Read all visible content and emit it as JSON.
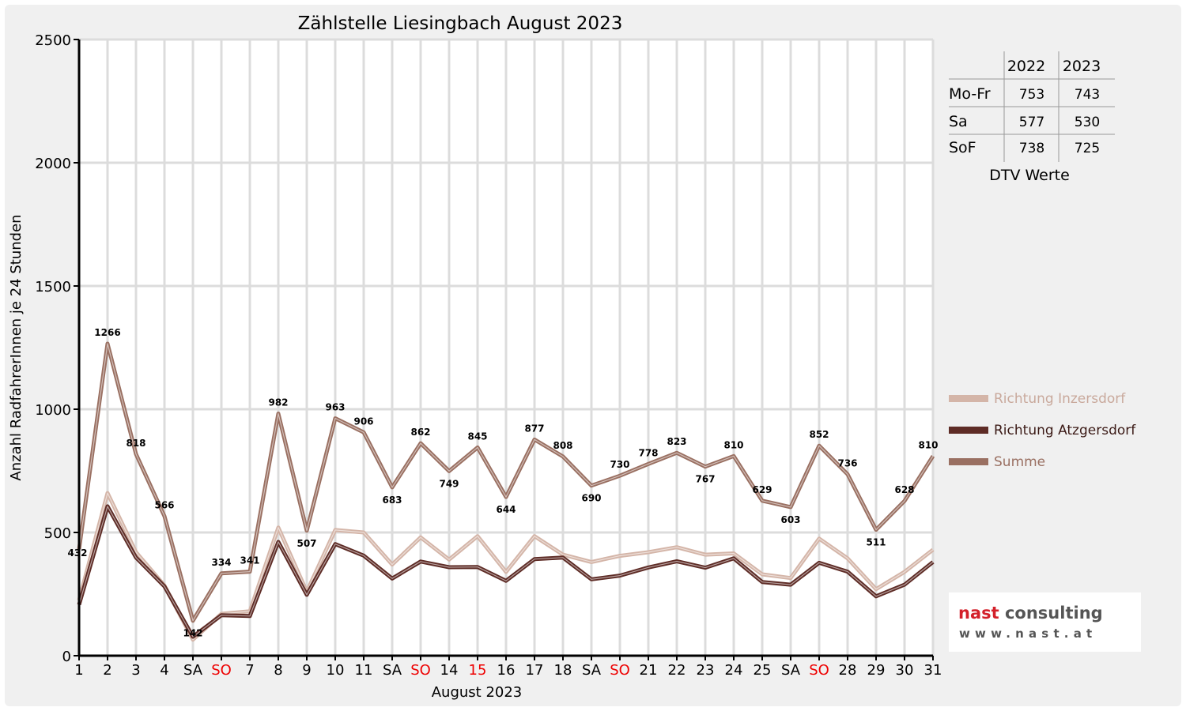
{
  "chart_data": {
    "type": "line",
    "title": "Zählstelle Liesingbach August 2023",
    "xlabel": "August 2023",
    "ylabel": "Anzahl RadfahrerInnen je 24 Stunden",
    "ylim": [
      0,
      2500
    ],
    "yticks": [
      "0",
      "500",
      "1000",
      "1500",
      "2000",
      "2500"
    ],
    "grid": true,
    "legend_position": "right",
    "categories": [
      "1",
      "2",
      "3",
      "4",
      "SA",
      "SO",
      "7",
      "8",
      "9",
      "10",
      "11",
      "SA",
      "SO",
      "14",
      "15",
      "16",
      "17",
      "18",
      "SA",
      "SO",
      "21",
      "22",
      "23",
      "24",
      "25",
      "SA",
      "SO",
      "28",
      "29",
      "30",
      "31"
    ],
    "highlighted_categories": [
      5,
      12,
      14,
      19,
      26
    ],
    "series": [
      {
        "name": "Richtung Inzersdorf",
        "color": "#d4b5a8",
        "values": [
          225,
          660,
          420,
          285,
          65,
          170,
          180,
          520,
          260,
          510,
          500,
          370,
          480,
          390,
          485,
          340,
          485,
          410,
          380,
          405,
          420,
          440,
          410,
          415,
          330,
          315,
          475,
          395,
          270,
          340,
          430
        ]
      },
      {
        "name": "Richtung Atzgersdorf",
        "color": "#5e2c26",
        "values": [
          207,
          606,
          398,
          281,
          77,
          164,
          161,
          462,
          247,
          453,
          406,
          313,
          382,
          359,
          360,
          304,
          392,
          398,
          310,
          325,
          358,
          383,
          357,
          395,
          299,
          288,
          377,
          341,
          241,
          288,
          380
        ]
      },
      {
        "name": "Summe",
        "color": "#9a7062",
        "values": [
          432,
          1266,
          818,
          566,
          142,
          334,
          341,
          982,
          507,
          963,
          906,
          683,
          862,
          749,
          845,
          644,
          877,
          808,
          690,
          730,
          778,
          823,
          767,
          810,
          629,
          603,
          852,
          736,
          511,
          628,
          810
        ]
      }
    ],
    "data_labels": [
      "432",
      "1266",
      "818",
      "566",
      "142",
      "334",
      "341",
      "982",
      "507",
      "963",
      "906",
      "683",
      "862",
      "749",
      "845",
      "644",
      "877",
      "808",
      "690",
      "730",
      "778",
      "823",
      "767",
      "810",
      "629",
      "603",
      "852",
      "736",
      "511",
      "628",
      "810"
    ]
  },
  "dtv_table": {
    "caption": "DTV Werte",
    "columns": [
      "2022",
      "2023"
    ],
    "rows": [
      {
        "label": "Mo-Fr",
        "values": [
          "753",
          "743"
        ]
      },
      {
        "label": "Sa",
        "values": [
          "577",
          "530"
        ]
      },
      {
        "label": "SoF",
        "values": [
          "738",
          "725"
        ]
      }
    ]
  },
  "logo": {
    "text_part1": "nast",
    "text_part2": "consulting",
    "url": "www.nast.at"
  },
  "colors": {
    "background_frame": "#f0f0f0",
    "grid": "#dcdcdc",
    "axis": "#000000",
    "highlight_label": "#ee0000"
  }
}
